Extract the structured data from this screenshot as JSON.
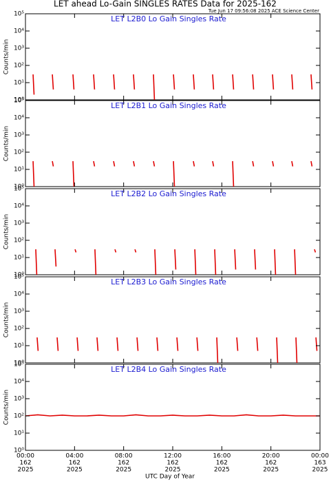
{
  "chart_data": {
    "type": "line",
    "title": "LET ahead Lo-Gain SINGLES RATES Data for 2025-162",
    "subtitle": "Tue Jun 17 09:56:08 2025 ACE Science Center",
    "xlabel": "UTC Day of Year",
    "ylabel": "Counts/min",
    "log_y": true,
    "color": "#e00000",
    "xlim": [
      0,
      24
    ],
    "xticks": [
      {
        "value": 0,
        "label": "00:00"
      },
      {
        "value": 4,
        "label": "04:00"
      },
      {
        "value": 8,
        "label": "08:00"
      },
      {
        "value": 12,
        "label": "12:00"
      },
      {
        "value": 16,
        "label": "16:00"
      },
      {
        "value": 20,
        "label": "20:00"
      },
      {
        "value": 24,
        "label": "00:00"
      }
    ],
    "xtick_days": [
      "162",
      "162",
      "162",
      "162",
      "162",
      "162",
      "163"
    ],
    "xtick_years": [
      "2025",
      "2025",
      "2025",
      "2025",
      "2025",
      "2025",
      "2025"
    ],
    "ylim": [
      1,
      100000
    ],
    "yticks": [
      {
        "value": 1,
        "label": "10⁰"
      },
      {
        "value": 10,
        "label": "10¹"
      },
      {
        "value": 100,
        "label": "10²"
      },
      {
        "value": 1000,
        "label": "10³"
      },
      {
        "value": 10000,
        "label": "10⁴"
      },
      {
        "value": 100000,
        "label": "10⁵"
      }
    ],
    "panels": [
      {
        "name": "LET L2B0 Lo Gain Singles Rate",
        "x": [
          0.62,
          0.7,
          null,
          2.19,
          2.27,
          null,
          3.87,
          3.95,
          null,
          5.55,
          5.63,
          null,
          7.18,
          7.26,
          null,
          8.8,
          8.88,
          null,
          10.43,
          10.51,
          null,
          12.06,
          12.14,
          null,
          13.68,
          13.76,
          null,
          15.25,
          15.33,
          null,
          16.88,
          16.96,
          null,
          18.51,
          18.59,
          null,
          20.13,
          20.21,
          null,
          21.7,
          21.78,
          null,
          23.27,
          23.35
        ],
        "values": [
          30,
          2,
          null,
          30,
          4,
          null,
          30,
          4,
          null,
          30,
          4,
          null,
          30,
          4,
          null,
          30,
          4,
          null,
          30,
          1,
          null,
          30,
          4,
          null,
          30,
          4,
          null,
          30,
          4,
          null,
          30,
          4,
          null,
          30,
          4,
          null,
          30,
          4,
          null,
          30,
          4,
          null,
          30,
          4
        ]
      },
      {
        "name": "LET L2B1 Lo Gain Singles Rate",
        "x": [
          0.62,
          0.7,
          null,
          2.19,
          2.27,
          null,
          3.87,
          3.95,
          null,
          5.55,
          5.63,
          null,
          7.18,
          7.26,
          null,
          8.8,
          8.88,
          null,
          10.43,
          10.51,
          null,
          12.06,
          12.14,
          null,
          13.68,
          13.76,
          null,
          15.25,
          15.33,
          null,
          16.88,
          16.96,
          null,
          18.51,
          18.59,
          null,
          20.13,
          20.21,
          null,
          21.7,
          21.78,
          null,
          23.27,
          23.35
        ],
        "values": [
          30,
          1,
          null,
          30,
          15,
          null,
          30,
          1,
          null,
          30,
          15,
          null,
          30,
          15,
          null,
          30,
          15,
          null,
          30,
          15,
          null,
          30,
          1,
          null,
          30,
          15,
          null,
          30,
          15,
          null,
          30,
          1,
          null,
          30,
          15,
          null,
          30,
          15,
          null,
          30,
          15,
          null,
          30,
          15
        ]
      },
      {
        "name": "LET L2B2 Lo Gain Singles Rate",
        "x": [
          0.84,
          0.92,
          null,
          2.41,
          2.49,
          null,
          4.04,
          4.12,
          null,
          5.66,
          5.74,
          null,
          7.29,
          7.37,
          null,
          8.92,
          9.0,
          null,
          10.54,
          10.62,
          null,
          12.17,
          12.25,
          null,
          13.8,
          13.88,
          null,
          15.42,
          15.5,
          null,
          17.05,
          17.13,
          null,
          18.67,
          18.75,
          null,
          20.3,
          20.38,
          null,
          21.93,
          22.01,
          null,
          23.55,
          23.63
        ],
        "values": [
          30,
          1,
          null,
          30,
          3,
          null,
          30,
          20,
          null,
          30,
          1,
          null,
          30,
          20,
          null,
          30,
          20,
          null,
          30,
          1,
          null,
          30,
          2,
          null,
          30,
          1,
          null,
          30,
          1,
          null,
          30,
          2,
          null,
          30,
          2,
          null,
          30,
          1,
          null,
          30,
          1,
          null,
          30,
          20
        ]
      },
      {
        "name": "LET L2B3 Lo Gain Singles Rate",
        "x": [
          0.95,
          1.03,
          null,
          2.58,
          2.66,
          null,
          4.21,
          4.29,
          null,
          5.83,
          5.91,
          null,
          7.46,
          7.54,
          null,
          9.09,
          9.17,
          null,
          10.71,
          10.79,
          null,
          12.34,
          12.42,
          null,
          13.97,
          14.05,
          null,
          15.59,
          15.67,
          null,
          17.22,
          17.3,
          null,
          18.85,
          18.93,
          null,
          20.47,
          20.55,
          null,
          22.04,
          22.12,
          null,
          23.67,
          23.75
        ],
        "values": [
          30,
          5,
          null,
          30,
          5,
          null,
          30,
          5,
          null,
          30,
          5,
          null,
          30,
          5,
          null,
          30,
          5,
          null,
          30,
          5,
          null,
          30,
          5,
          null,
          30,
          5,
          null,
          30,
          1,
          null,
          30,
          5,
          null,
          30,
          5,
          null,
          30,
          1,
          null,
          30,
          1,
          null,
          30,
          5
        ]
      },
      {
        "name": "LET L2B4 Lo Gain Singles Rate",
        "x": [
          0,
          1,
          2,
          3,
          4,
          5,
          6,
          7,
          8,
          9,
          10,
          11,
          12,
          13,
          14,
          15,
          16,
          17,
          18,
          19,
          20,
          21,
          22,
          23,
          24
        ],
        "values": [
          100,
          115,
          100,
          110,
          100,
          100,
          110,
          100,
          100,
          115,
          100,
          100,
          110,
          100,
          100,
          110,
          100,
          100,
          115,
          100,
          100,
          110,
          100,
          100,
          100
        ]
      }
    ]
  }
}
